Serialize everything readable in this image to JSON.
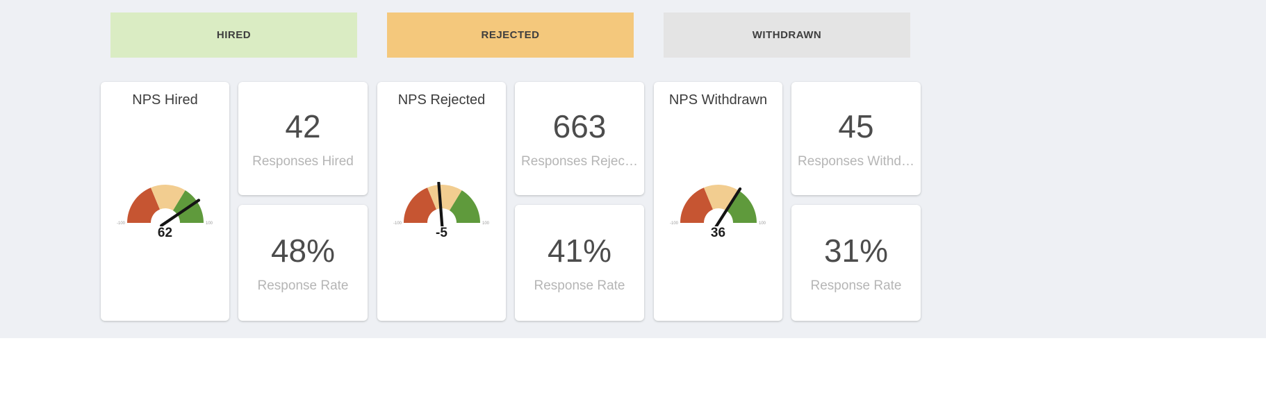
{
  "background": "#eef0f4",
  "groups": [
    {
      "band": {
        "label": "HIRED",
        "color": "#daecc3"
      },
      "gauge_card": {
        "title": "NPS Hired",
        "value": 62,
        "min": -100,
        "max": 100,
        "min_label": "-100",
        "max_label": "100"
      },
      "stat_cards": [
        {
          "value": "42",
          "label": "Responses Hired"
        },
        {
          "value": "48%",
          "label": "Response Rate"
        }
      ]
    },
    {
      "band": {
        "label": "REJECTED",
        "color": "#f4c87c"
      },
      "gauge_card": {
        "title": "NPS Rejected",
        "value": -5,
        "min": -100,
        "max": 100,
        "min_label": "-100",
        "max_label": "100"
      },
      "stat_cards": [
        {
          "value": "663",
          "label": "Responses Rejec…"
        },
        {
          "value": "41%",
          "label": "Response Rate"
        }
      ]
    },
    {
      "band": {
        "label": "WITHDRAWN",
        "color": "#e4e4e4"
      },
      "gauge_card": {
        "title": "NPS Withdrawn",
        "value": 36,
        "min": -100,
        "max": 100,
        "min_label": "-100",
        "max_label": "100"
      },
      "stat_cards": [
        {
          "value": "45",
          "label": "Responses Withd…"
        },
        {
          "value": "31%",
          "label": "Response Rate"
        }
      ]
    }
  ],
  "gauge_style": {
    "segments": [
      {
        "from": -100,
        "to": -25,
        "color": "#c65532"
      },
      {
        "from": -25,
        "to": 35,
        "color": "#f2cd90"
      },
      {
        "from": 35,
        "to": 100,
        "color": "#5f9a3c"
      }
    ],
    "needle_color": "#141414",
    "tick_label_color": "#9b9b9b"
  },
  "chart_data": [
    {
      "type": "gauge",
      "title": "NPS Hired",
      "value": 62,
      "min": -100,
      "max": 100,
      "responses": 42,
      "response_rate_pct": 48
    },
    {
      "type": "gauge",
      "title": "NPS Rejected",
      "value": -5,
      "min": -100,
      "max": 100,
      "responses": 663,
      "response_rate_pct": 41
    },
    {
      "type": "gauge",
      "title": "NPS Withdrawn",
      "value": 36,
      "min": -100,
      "max": 100,
      "responses": 45,
      "response_rate_pct": 31
    }
  ]
}
